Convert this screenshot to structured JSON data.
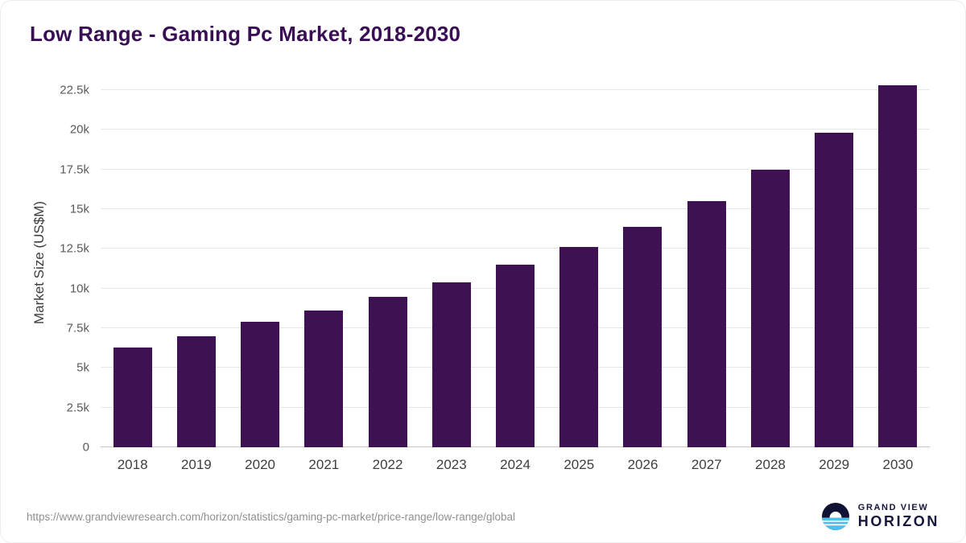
{
  "title": "Low Range - Gaming Pc Market, 2018-2030",
  "colors": {
    "bar": "#3e1152",
    "title": "#3a0e55",
    "gridline": "#e7e7e7",
    "brand_navy": "#14163c",
    "brand_blue": "#4cc0ea"
  },
  "chart_data": {
    "type": "bar",
    "title": "Low Range - Gaming Pc Market, 2018-2030",
    "categories": [
      "2018",
      "2019",
      "2020",
      "2021",
      "2022",
      "2023",
      "2024",
      "2025",
      "2026",
      "2027",
      "2028",
      "2029",
      "2030"
    ],
    "values": [
      6300,
      7000,
      7900,
      8600,
      9450,
      10400,
      11500,
      12600,
      13900,
      15500,
      17500,
      19800,
      22800
    ],
    "xlabel": "",
    "ylabel": "Market Size (US$M)",
    "ylim": [
      0,
      23300
    ],
    "ytick_values": [
      0,
      2500,
      5000,
      7500,
      10000,
      12500,
      15000,
      17500,
      20000,
      22500
    ],
    "ytick_labels": [
      "0",
      "2.5k",
      "5k",
      "7.5k",
      "10k",
      "12.5k",
      "15k",
      "17.5k",
      "20k",
      "22.5k"
    ],
    "grid": true,
    "legend": "none"
  },
  "footer": {
    "source_url": "https://www.grandviewresearch.com/horizon/statistics/gaming-pc-market/price-range/low-range/global",
    "brand_line1": "GRAND VIEW",
    "brand_line2": "HORIZON"
  }
}
